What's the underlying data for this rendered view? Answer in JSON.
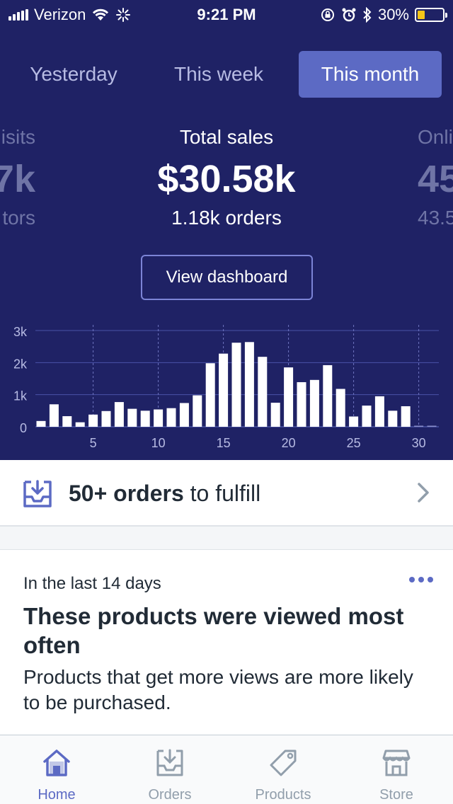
{
  "status_bar": {
    "carrier": "Verizon",
    "time": "9:21 PM",
    "battery": "30%",
    "battery_level": 0.3,
    "icons": [
      "signal-icon",
      "wifi-icon",
      "activity-spinner-icon",
      "orientation-lock-icon",
      "alarm-icon",
      "bluetooth-icon",
      "battery-icon"
    ]
  },
  "period_tabs": [
    {
      "label": "Yesterday",
      "active": false
    },
    {
      "label": "This week",
      "active": false
    },
    {
      "label": "This month",
      "active": true
    }
  ],
  "metrics": {
    "left": {
      "label": "isits",
      "value": "7k",
      "sub": "tors"
    },
    "center": {
      "label": "Total sales",
      "value": "$30.58k",
      "sub": "1.18k orders"
    },
    "right": {
      "label": "Onli",
      "value": "45",
      "sub": "43.5"
    }
  },
  "dashboard_button": "View dashboard",
  "colors": {
    "header_bg": "#1f2265",
    "accent": "#5c6ac4",
    "text_dark": "#212b36",
    "muted": "#919eab"
  },
  "chart_data": {
    "type": "bar",
    "x": [
      1,
      2,
      3,
      4,
      5,
      6,
      7,
      8,
      9,
      10,
      11,
      12,
      13,
      14,
      15,
      16,
      17,
      18,
      19,
      20,
      21,
      22,
      23,
      24,
      25,
      26,
      27,
      28,
      29,
      30,
      31
    ],
    "values": [
      180,
      700,
      330,
      140,
      380,
      490,
      770,
      560,
      500,
      540,
      580,
      740,
      980,
      1980,
      2280,
      2620,
      2640,
      2180,
      750,
      1850,
      1390,
      1460,
      1920,
      1180,
      320,
      660,
      950,
      500,
      640,
      30,
      30
    ],
    "xticks": [
      "5",
      "10",
      "15",
      "20",
      "25",
      "30"
    ],
    "xtick_values": [
      5,
      10,
      15,
      20,
      25,
      30
    ],
    "yticks": [
      "0",
      "1k",
      "2k",
      "3k"
    ],
    "ytick_values": [
      0,
      1000,
      2000,
      3000
    ],
    "ylim": [
      0,
      3000
    ],
    "grid": true
  },
  "fulfill": {
    "count": "50+ orders",
    "rest": " to fulfill"
  },
  "card": {
    "eyebrow": "In the last 14 days",
    "title": "These products were viewed most often",
    "body": "Products that get more views are more likely to be purchased."
  },
  "tab_bar": [
    {
      "label": "Home",
      "icon": "home-icon",
      "active": true
    },
    {
      "label": "Orders",
      "icon": "orders-icon",
      "active": false
    },
    {
      "label": "Products",
      "icon": "products-tag-icon",
      "active": false
    },
    {
      "label": "Store",
      "icon": "store-icon",
      "active": false
    }
  ]
}
